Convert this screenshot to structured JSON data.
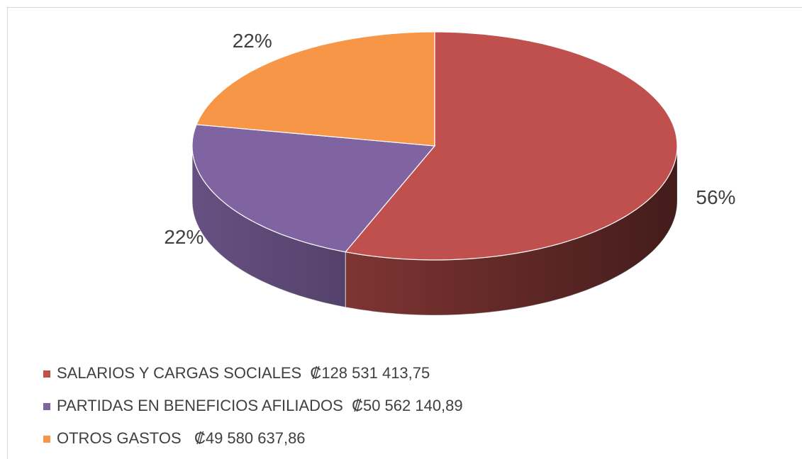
{
  "chart_data": {
    "type": "pie",
    "categories": [
      "SALARIOS Y CARGAS SOCIALES  ₡128 531 413,75",
      "PARTIDAS EN BENEFICIOS AFILIADOS  ₡50 562 140,89",
      "OTROS GASTOS   ₡49 580 637,86"
    ],
    "values": [
      56,
      22,
      22
    ],
    "value_labels": [
      "56%",
      "22%",
      "22%"
    ],
    "colors": [
      "#c0504d",
      "#8064a2",
      "#f79646"
    ],
    "legend": "bottom-left"
  }
}
